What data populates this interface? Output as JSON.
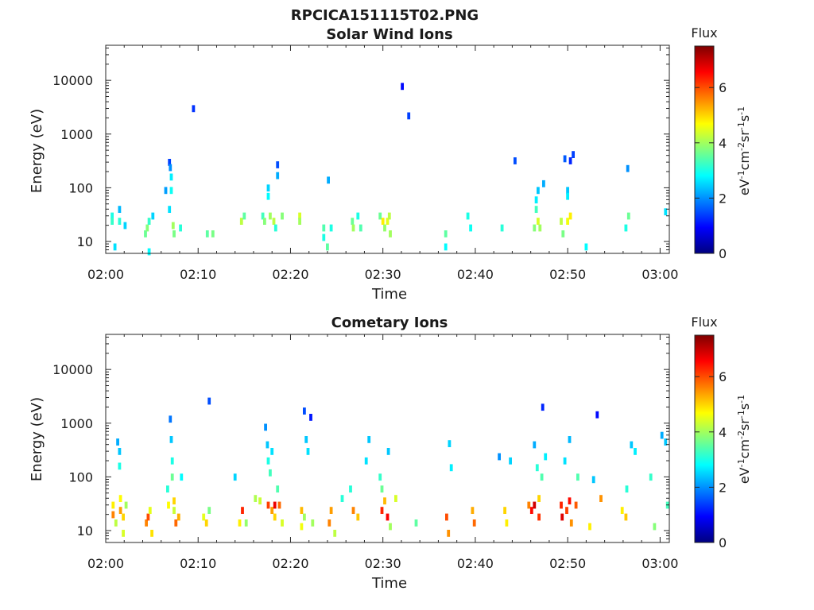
{
  "figure": {
    "title": "RPCICA151115T02.PNG"
  },
  "chart_data": [
    {
      "type": "heatmap",
      "title": "Solar Wind Ions",
      "xlabel": "Time",
      "ylabel": "Energy (eV)",
      "x_ticks": [
        "02:00",
        "02:10",
        "02:20",
        "02:30",
        "02:40",
        "02:50",
        "03:00"
      ],
      "xlim_minutes": [
        0,
        61
      ],
      "y_ticks": [
        "10",
        "100",
        "1000",
        "10000"
      ],
      "y_scale": "log",
      "ylim": [
        6,
        45000
      ],
      "colorbar": {
        "label": "Flux",
        "unit": "eV-1cm-2sr-1s-1",
        "ticks": [
          "0",
          "2",
          "4",
          "6"
        ],
        "range": [
          0,
          7.5
        ]
      },
      "cells": [
        [
          0.7,
          30,
          3.0
        ],
        [
          0.7,
          24,
          3.2
        ],
        [
          1.0,
          8,
          2.6
        ],
        [
          1.5,
          40,
          2.3
        ],
        [
          1.5,
          24,
          3.1
        ],
        [
          2.1,
          20,
          2.5
        ],
        [
          4.3,
          14,
          3.6
        ],
        [
          4.5,
          18,
          3.8
        ],
        [
          4.7,
          24,
          3.2
        ],
        [
          4.7,
          6.5,
          2.8
        ],
        [
          5.1,
          30,
          2.5
        ],
        [
          6.5,
          90,
          2.1
        ],
        [
          6.9,
          300,
          1.4
        ],
        [
          6.9,
          40,
          2.6
        ],
        [
          7.0,
          240,
          2.0
        ],
        [
          7.1,
          160,
          2.7
        ],
        [
          7.1,
          90,
          2.9
        ],
        [
          7.3,
          20,
          4.0
        ],
        [
          7.4,
          14,
          3.7
        ],
        [
          8.1,
          18,
          3.1
        ],
        [
          9.5,
          3000,
          1.3
        ],
        [
          11.0,
          14,
          3.5
        ],
        [
          11.6,
          14,
          3.7
        ],
        [
          14.7,
          24,
          4.2
        ],
        [
          15.0,
          30,
          3.5
        ],
        [
          17.0,
          30,
          3.3
        ],
        [
          17.2,
          24,
          3.8
        ],
        [
          17.6,
          100,
          2.5
        ],
        [
          17.6,
          70,
          2.8
        ],
        [
          17.8,
          30,
          4.0
        ],
        [
          18.2,
          24,
          4.2
        ],
        [
          18.4,
          18,
          3.1
        ],
        [
          18.6,
          270,
          1.5
        ],
        [
          18.6,
          170,
          2.2
        ],
        [
          19.1,
          30,
          3.8
        ],
        [
          21.0,
          30,
          4.4
        ],
        [
          21.0,
          24,
          4.0
        ],
        [
          23.6,
          18,
          3.4
        ],
        [
          23.6,
          12,
          3.0
        ],
        [
          24.0,
          8,
          3.5
        ],
        [
          24.1,
          140,
          2.2
        ],
        [
          24.4,
          18,
          3.0
        ],
        [
          26.7,
          24,
          3.6
        ],
        [
          26.8,
          18,
          4.0
        ],
        [
          27.3,
          30,
          3.0
        ],
        [
          27.6,
          18,
          3.4
        ],
        [
          29.7,
          30,
          3.6
        ],
        [
          30.0,
          24,
          4.8
        ],
        [
          30.2,
          18,
          3.9
        ],
        [
          30.5,
          24,
          4.5
        ],
        [
          30.7,
          30,
          4.2
        ],
        [
          30.8,
          14,
          4.0
        ],
        [
          32.1,
          7800,
          1.0
        ],
        [
          32.8,
          2200,
          1.4
        ],
        [
          36.8,
          14,
          3.5
        ],
        [
          36.8,
          8,
          2.8
        ],
        [
          39.2,
          30,
          3.0
        ],
        [
          39.5,
          18,
          2.9
        ],
        [
          42.9,
          18,
          3.1
        ],
        [
          44.3,
          320,
          1.5
        ],
        [
          46.4,
          18,
          3.8
        ],
        [
          46.6,
          60,
          2.7
        ],
        [
          46.6,
          40,
          3.3
        ],
        [
          46.8,
          90,
          2.4
        ],
        [
          46.8,
          24,
          4.4
        ],
        [
          47.0,
          18,
          4.0
        ],
        [
          47.4,
          120,
          2.2
        ],
        [
          49.3,
          24,
          4.2
        ],
        [
          49.5,
          14,
          3.7
        ],
        [
          49.7,
          350,
          1.6
        ],
        [
          50.0,
          90,
          2.4
        ],
        [
          50.0,
          70,
          2.7
        ],
        [
          50.0,
          24,
          4.6
        ],
        [
          50.3,
          30,
          4.8
        ],
        [
          50.3,
          320,
          1.2
        ],
        [
          50.6,
          420,
          1.4
        ],
        [
          52.0,
          8,
          2.8
        ],
        [
          56.5,
          230,
          2.0
        ],
        [
          56.6,
          30,
          3.6
        ],
        [
          56.3,
          18,
          3.0
        ],
        [
          60.6,
          36,
          2.6
        ]
      ]
    },
    {
      "type": "heatmap",
      "title": "Cometary Ions",
      "xlabel": "Time",
      "ylabel": "Energy (eV)",
      "x_ticks": [
        "02:00",
        "02:10",
        "02:20",
        "02:30",
        "02:40",
        "02:50",
        "03:00"
      ],
      "xlim_minutes": [
        0,
        61
      ],
      "y_ticks": [
        "10",
        "100",
        "1000",
        "10000"
      ],
      "y_scale": "log",
      "ylim": [
        6,
        45000
      ],
      "colorbar": {
        "label": "Flux",
        "unit": "eV-1cm-2sr-1s-1",
        "ticks": [
          "0",
          "2",
          "4",
          "6"
        ],
        "range": [
          0,
          7.5
        ]
      },
      "cells": [
        [
          0.8,
          30,
          4.8
        ],
        [
          0.8,
          20,
          5.6
        ],
        [
          1.1,
          14,
          4.2
        ],
        [
          1.3,
          450,
          2.2
        ],
        [
          1.5,
          300,
          2.4
        ],
        [
          1.5,
          160,
          3.0
        ],
        [
          1.6,
          40,
          4.7
        ],
        [
          1.6,
          24,
          5.4
        ],
        [
          1.9,
          18,
          5.0
        ],
        [
          1.9,
          9,
          4.4
        ],
        [
          2.2,
          30,
          4.0
        ],
        [
          4.4,
          14,
          5.6
        ],
        [
          4.6,
          18,
          6.0
        ],
        [
          4.8,
          24,
          4.5
        ],
        [
          5.0,
          9,
          4.9
        ],
        [
          6.7,
          60,
          3.1
        ],
        [
          6.8,
          30,
          4.7
        ],
        [
          7.0,
          1200,
          1.8
        ],
        [
          7.1,
          500,
          2.4
        ],
        [
          7.2,
          200,
          3.0
        ],
        [
          7.2,
          100,
          3.6
        ],
        [
          7.4,
          36,
          5.0
        ],
        [
          7.4,
          24,
          4.3
        ],
        [
          7.6,
          14,
          5.8
        ],
        [
          7.9,
          18,
          5.3
        ],
        [
          8.2,
          100,
          2.8
        ],
        [
          10.6,
          18,
          4.5
        ],
        [
          10.9,
          14,
          5.0
        ],
        [
          11.2,
          2600,
          1.5
        ],
        [
          11.2,
          24,
          3.7
        ],
        [
          14.0,
          100,
          2.5
        ],
        [
          14.5,
          14,
          4.8
        ],
        [
          14.8,
          24,
          6.3
        ],
        [
          15.2,
          14,
          3.9
        ],
        [
          16.2,
          40,
          4.1
        ],
        [
          16.7,
          36,
          4.3
        ],
        [
          17.3,
          850,
          2.0
        ],
        [
          17.5,
          400,
          2.4
        ],
        [
          17.6,
          200,
          3.0
        ],
        [
          17.6,
          30,
          6.1
        ],
        [
          17.8,
          120,
          3.3
        ],
        [
          18.0,
          300,
          2.6
        ],
        [
          18.0,
          24,
          5.4
        ],
        [
          18.3,
          30,
          6.7
        ],
        [
          18.3,
          18,
          5.0
        ],
        [
          18.6,
          60,
          3.4
        ],
        [
          18.8,
          30,
          5.8
        ],
        [
          19.1,
          14,
          4.4
        ],
        [
          21.2,
          24,
          5.2
        ],
        [
          21.2,
          12,
          4.6
        ],
        [
          21.5,
          18,
          4.0
        ],
        [
          21.5,
          1700,
          1.5
        ],
        [
          21.7,
          500,
          2.4
        ],
        [
          21.9,
          300,
          2.6
        ],
        [
          22.2,
          1300,
          1.1
        ],
        [
          22.4,
          14,
          4.0
        ],
        [
          24.2,
          14,
          5.6
        ],
        [
          24.4,
          24,
          5.4
        ],
        [
          24.8,
          9,
          4.2
        ],
        [
          25.6,
          40,
          3.1
        ],
        [
          26.5,
          60,
          3.1
        ],
        [
          26.8,
          24,
          5.6
        ],
        [
          27.3,
          18,
          5.1
        ],
        [
          28.5,
          500,
          2.4
        ],
        [
          28.2,
          200,
          2.6
        ],
        [
          29.7,
          100,
          3.2
        ],
        [
          29.9,
          60,
          3.6
        ],
        [
          29.9,
          24,
          6.3
        ],
        [
          30.2,
          36,
          5.2
        ],
        [
          30.5,
          18,
          6.6
        ],
        [
          30.6,
          300,
          2.4
        ],
        [
          30.8,
          12,
          4.0
        ],
        [
          31.4,
          40,
          4.4
        ],
        [
          33.6,
          14,
          3.5
        ],
        [
          36.9,
          18,
          6.0
        ],
        [
          37.1,
          9,
          5.5
        ],
        [
          37.2,
          420,
          2.5
        ],
        [
          37.4,
          150,
          2.7
        ],
        [
          39.7,
          24,
          5.3
        ],
        [
          39.9,
          14,
          5.8
        ],
        [
          42.6,
          240,
          2.0
        ],
        [
          43.2,
          24,
          5.0
        ],
        [
          43.4,
          14,
          4.8
        ],
        [
          43.8,
          200,
          2.5
        ],
        [
          45.8,
          30,
          5.6
        ],
        [
          46.1,
          24,
          6.5
        ],
        [
          46.4,
          30,
          6.9
        ],
        [
          46.4,
          400,
          2.2
        ],
        [
          46.7,
          150,
          3.1
        ],
        [
          46.9,
          40,
          5.0
        ],
        [
          46.9,
          18,
          6.2
        ],
        [
          47.2,
          100,
          3.4
        ],
        [
          47.3,
          2000,
          1.2
        ],
        [
          47.6,
          240,
          2.7
        ],
        [
          49.3,
          30,
          6.3
        ],
        [
          49.4,
          18,
          6.8
        ],
        [
          49.7,
          200,
          2.6
        ],
        [
          49.9,
          24,
          6.1
        ],
        [
          50.2,
          36,
          6.5
        ],
        [
          50.2,
          500,
          2.3
        ],
        [
          50.4,
          14,
          5.5
        ],
        [
          50.9,
          30,
          5.9
        ],
        [
          51.1,
          100,
          3.4
        ],
        [
          52.4,
          12,
          4.8
        ],
        [
          52.8,
          90,
          2.4
        ],
        [
          53.2,
          1450,
          1.0
        ],
        [
          53.6,
          40,
          5.5
        ],
        [
          55.9,
          24,
          4.8
        ],
        [
          56.3,
          18,
          5.1
        ],
        [
          56.4,
          60,
          3.1
        ],
        [
          56.9,
          400,
          2.4
        ],
        [
          57.3,
          300,
          2.7
        ],
        [
          59.0,
          100,
          3.2
        ],
        [
          59.4,
          12,
          3.8
        ],
        [
          60.2,
          600,
          2.2
        ],
        [
          60.6,
          450,
          2.4
        ],
        [
          60.8,
          30,
          3.3
        ]
      ]
    }
  ]
}
